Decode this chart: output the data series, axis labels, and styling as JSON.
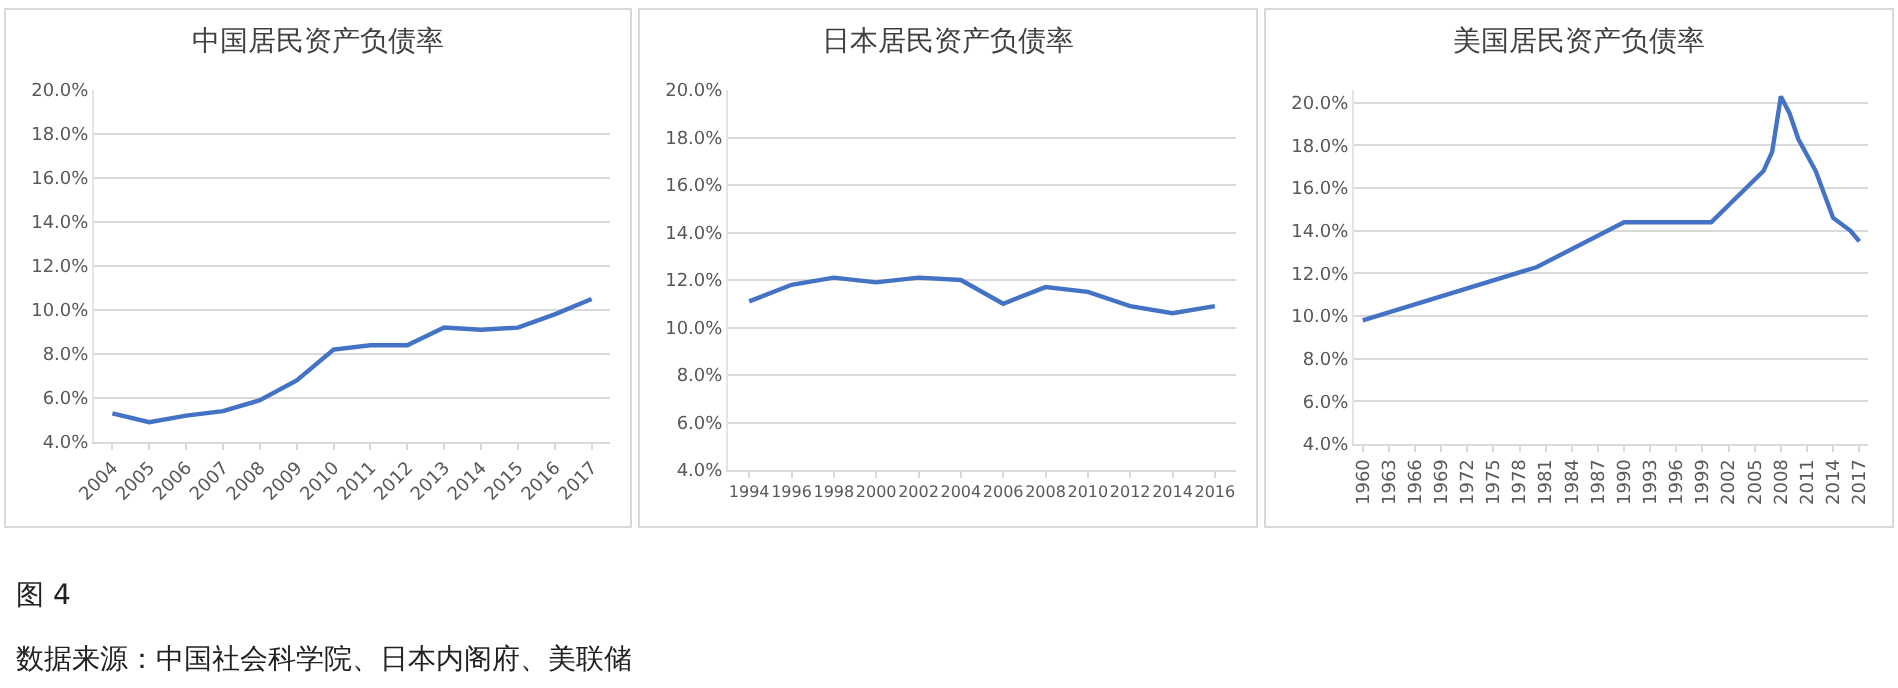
{
  "chart_data": [
    {
      "type": "line",
      "title": "中国居民资产负债率",
      "categories": [
        "2004",
        "2005",
        "2006",
        "2007",
        "2008",
        "2009",
        "2010",
        "2011",
        "2012",
        "2013",
        "2014",
        "2015",
        "2016",
        "2017"
      ],
      "series": [
        {
          "color": "#4472c4",
          "values": [
            5.3,
            4.9,
            5.2,
            5.4,
            5.9,
            6.8,
            8.2,
            8.4,
            8.4,
            9.2,
            9.1,
            9.2,
            9.8,
            10.5
          ]
        }
      ],
      "ylim": [
        4,
        20
      ],
      "yticks": [
        {
          "value": 4,
          "label": "4.0%"
        },
        {
          "value": 6,
          "label": "6.0%"
        },
        {
          "value": 8,
          "label": "8.0%"
        },
        {
          "value": 10,
          "label": "10.0%"
        },
        {
          "value": 12,
          "label": "12.0%"
        },
        {
          "value": 14,
          "label": "14.0%"
        },
        {
          "value": 16,
          "label": "16.0%"
        },
        {
          "value": 18,
          "label": "18.0%"
        },
        {
          "value": 20,
          "label": "20.0%"
        }
      ],
      "grid": "y",
      "marker": "none",
      "line_style": "solid",
      "annotations": [
        "图 4",
        "数据来源：中国社会科学院、日本内阁府、美联储"
      ]
    },
    {
      "type": "line",
      "title": "日本居民资产负债率",
      "categories": [
        "1994",
        "1996",
        "1998",
        "2000",
        "2002",
        "2004",
        "2006",
        "2008",
        "2010",
        "2012",
        "2014",
        "2016"
      ],
      "series": [
        {
          "color": "#4472c4",
          "values": [
            11.1,
            11.8,
            12.1,
            11.9,
            12.1,
            12.0,
            11.0,
            11.7,
            11.5,
            10.9,
            10.6,
            10.9
          ]
        }
      ],
      "ylim": [
        4,
        20
      ],
      "yticks": [
        {
          "value": 4,
          "label": "4.0%"
        },
        {
          "value": 6,
          "label": "6.0%"
        },
        {
          "value": 8,
          "label": "8.0%"
        },
        {
          "value": 10,
          "label": "10.0%"
        },
        {
          "value": 12,
          "label": "12.0%"
        },
        {
          "value": 14,
          "label": "14.0%"
        },
        {
          "value": 16,
          "label": "16.0%"
        },
        {
          "value": 18,
          "label": "18.0%"
        },
        {
          "value": 20,
          "label": "20.0%"
        }
      ],
      "grid": "y",
      "marker": "none",
      "line_style": "solid"
    },
    {
      "type": "line",
      "title": "美国居民资产负债率",
      "x": [
        1960,
        1980,
        1990,
        2000,
        2006,
        2007,
        2008,
        2009,
        2010,
        2012,
        2014,
        2016,
        2017
      ],
      "series": [
        {
          "color": "#4472c4",
          "values": [
            9.8,
            12.3,
            14.4,
            14.4,
            16.8,
            17.7,
            20.3,
            19.5,
            18.3,
            16.8,
            14.6,
            14.0,
            13.5
          ]
        }
      ],
      "xlim": [
        1959,
        2018
      ],
      "xticks": [
        1960,
        1963,
        1966,
        1969,
        1972,
        1975,
        1978,
        1981,
        1984,
        1987,
        1990,
        1993,
        1996,
        1999,
        2002,
        2005,
        2008,
        2011,
        2014,
        2017
      ],
      "ylim": [
        4,
        20.6
      ],
      "yticks": [
        {
          "value": 4,
          "label": "4.0%"
        },
        {
          "value": 6,
          "label": "6.0%"
        },
        {
          "value": 8,
          "label": "8.0%"
        },
        {
          "value": 10,
          "label": "10.0%"
        },
        {
          "value": 12,
          "label": "12.0%"
        },
        {
          "value": 14,
          "label": "14.0%"
        },
        {
          "value": 16,
          "label": "16.0%"
        },
        {
          "value": 18,
          "label": "18.0%"
        },
        {
          "value": 20,
          "label": "20.0%"
        }
      ],
      "grid": "y",
      "marker": "none",
      "line_style": "solid"
    }
  ]
}
